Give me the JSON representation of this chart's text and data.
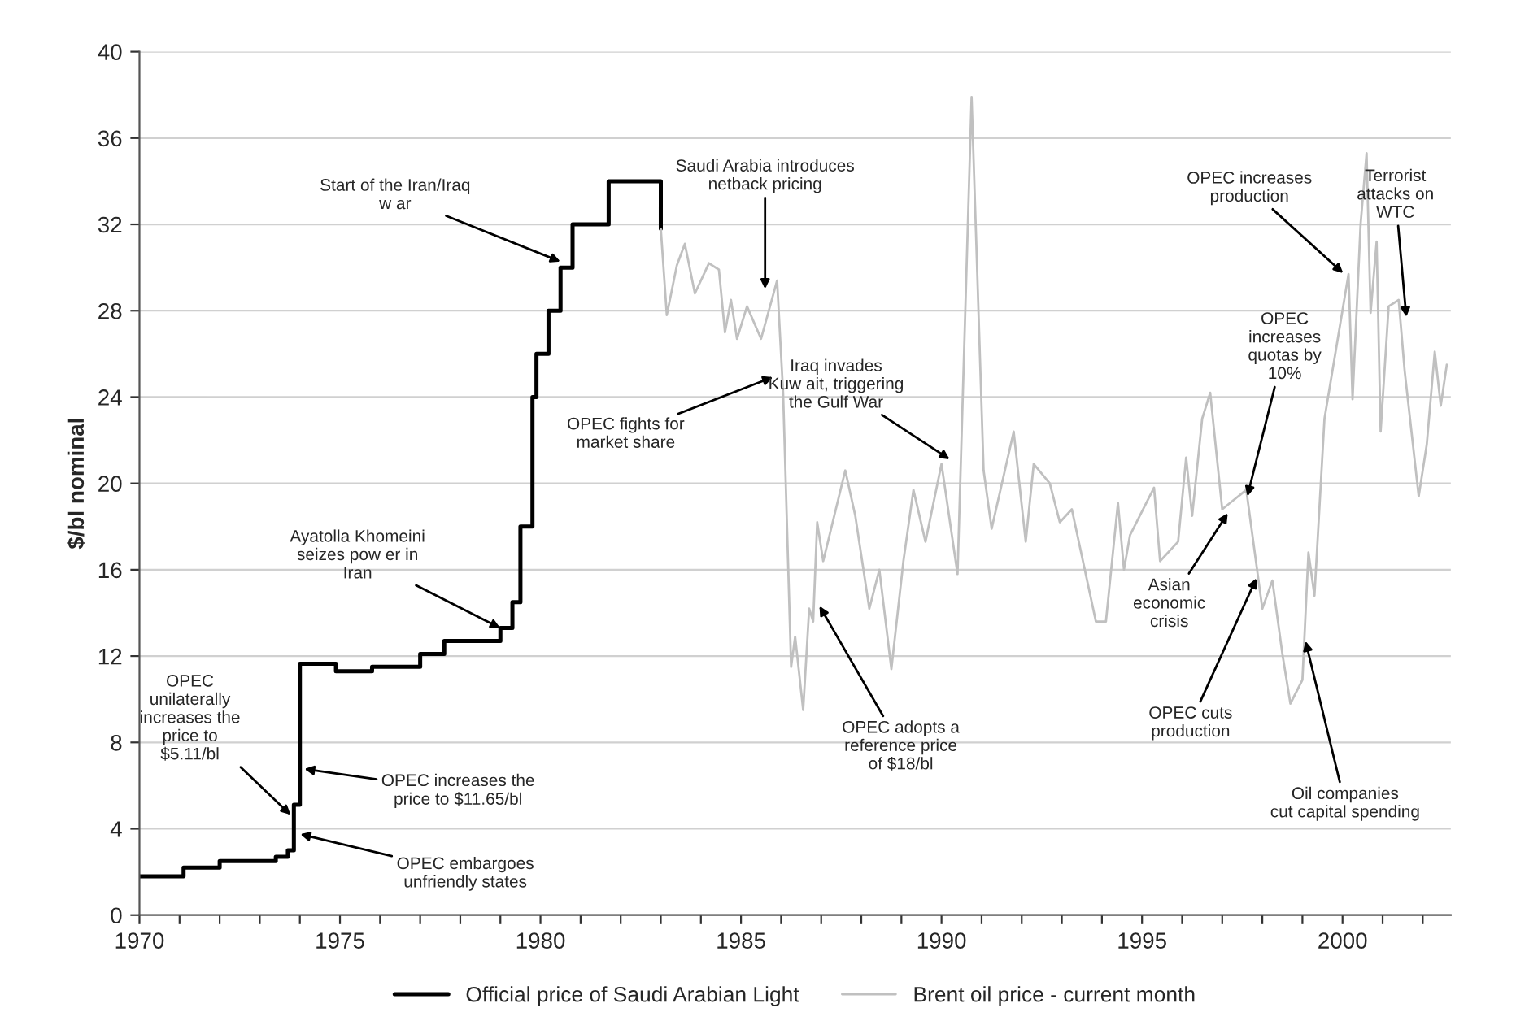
{
  "chart_data": {
    "type": "line",
    "ylabel": "$/bl nominal",
    "xlim": [
      1970,
      2002.7
    ],
    "ylim": [
      0,
      40
    ],
    "xticks": [
      1970,
      {
        "value": 1971,
        "label": null
      },
      {
        "value": 1972,
        "label": null
      },
      {
        "value": 1973,
        "label": null
      },
      {
        "value": 1974,
        "label": null
      },
      1975,
      {
        "value": 1976,
        "label": null
      },
      {
        "value": 1977,
        "label": null
      },
      {
        "value": 1978,
        "label": null
      },
      {
        "value": 1979,
        "label": null
      },
      1980,
      {
        "value": 1981,
        "label": null
      },
      {
        "value": 1982,
        "label": null
      },
      {
        "value": 1983,
        "label": null
      },
      {
        "value": 1984,
        "label": null
      },
      1985,
      {
        "value": 1986,
        "label": null
      },
      {
        "value": 1987,
        "label": null
      },
      {
        "value": 1988,
        "label": null
      },
      {
        "value": 1989,
        "label": null
      },
      1990,
      {
        "value": 1991,
        "label": null
      },
      {
        "value": 1992,
        "label": null
      },
      {
        "value": 1993,
        "label": null
      },
      {
        "value": 1994,
        "label": null
      },
      1995,
      {
        "value": 1996,
        "label": null
      },
      {
        "value": 1997,
        "label": null
      },
      {
        "value": 1998,
        "label": null
      },
      {
        "value": 1999,
        "label": null
      },
      2000,
      {
        "value": 2001,
        "label": null
      },
      {
        "value": 2002,
        "label": null
      }
    ],
    "yticks": [
      0,
      4,
      8,
      12,
      16,
      20,
      24,
      28,
      32,
      36,
      40
    ],
    "grid": "y",
    "legend": "bottom",
    "series": [
      {
        "name": "Official price of Saudi Arabian Light",
        "type": "step",
        "color": "#000000",
        "x": [
          1970,
          1971.1,
          1972,
          1973.4,
          1973.7,
          1973.85,
          1974.0,
          1974.9,
          1975.8,
          1977.0,
          1977.6,
          1979.0,
          1979.3,
          1979.5,
          1979.8,
          1979.9,
          1980.2,
          1980.5,
          1980.8,
          1981.7,
          1982.9,
          1983.0
        ],
        "values": [
          1.8,
          2.2,
          2.5,
          2.7,
          3.0,
          5.11,
          11.65,
          11.3,
          11.5,
          12.1,
          12.7,
          13.3,
          14.5,
          18,
          24,
          26,
          28,
          30,
          32,
          34,
          34,
          31.8
        ]
      },
      {
        "name": "Brent oil price - current month",
        "color": "#c0c0c0",
        "x": [
          1983.0,
          1983.15,
          1983.4,
          1983.6,
          1983.85,
          1984.2,
          1984.45,
          1984.6,
          1984.75,
          1984.9,
          1985.15,
          1985.5,
          1985.9,
          1986.05,
          1986.25,
          1986.35,
          1986.55,
          1986.7,
          1986.8,
          1986.9,
          1987.05,
          1987.6,
          1987.85,
          1988.2,
          1988.45,
          1988.75,
          1989.05,
          1989.3,
          1989.6,
          1990.0,
          1990.4,
          1990.75,
          1991.05,
          1991.25,
          1991.8,
          1992.1,
          1992.3,
          1992.7,
          1992.95,
          1993.25,
          1993.85,
          1994.1,
          1994.4,
          1994.55,
          1994.7,
          1995.3,
          1995.45,
          1995.9,
          1996.1,
          1996.25,
          1996.5,
          1996.7,
          1997.0,
          1997.6,
          1998.0,
          1998.25,
          1998.5,
          1998.7,
          1999.0,
          1999.15,
          1999.3,
          1999.55,
          2000.15,
          2000.25,
          2000.45,
          2000.6,
          2000.7,
          2000.85,
          2000.95,
          2001.15,
          2001.4,
          2001.55,
          2001.9,
          2002.1,
          2002.3,
          2002.45,
          2002.6
        ],
        "values": [
          31.8,
          27.8,
          30.1,
          31.1,
          28.8,
          30.2,
          29.9,
          27.0,
          28.5,
          26.7,
          28.2,
          26.7,
          29.4,
          24.2,
          11.5,
          12.9,
          9.5,
          14.2,
          13.6,
          18.2,
          16.4,
          20.6,
          18.5,
          14.2,
          16.0,
          11.4,
          16.4,
          19.7,
          17.3,
          20.9,
          15.8,
          37.9,
          20.6,
          17.9,
          22.4,
          17.3,
          20.9,
          20.0,
          18.2,
          18.8,
          13.6,
          13.6,
          19.1,
          16.0,
          17.6,
          19.8,
          16.4,
          17.3,
          21.2,
          18.5,
          23.0,
          24.2,
          18.8,
          19.7,
          14.2,
          15.5,
          12.1,
          9.8,
          10.9,
          16.8,
          14.8,
          23.0,
          29.7,
          23.9,
          32.0,
          35.3,
          27.9,
          31.2,
          22.4,
          28.2,
          28.5,
          25.2,
          19.4,
          21.8,
          26.1,
          23.6,
          25.5
        ]
      }
    ],
    "annotations": [
      {
        "text": "OPEC\nunilaterally\nincreases the\nprice to\n$5.11/bl",
        "x": 1973.85,
        "y": 4.5
      },
      {
        "text": "OPEC increases the\nprice to $11.65/bl",
        "x": 1974.0,
        "y": 6.8
      },
      {
        "text": "OPEC embargoes\nunfriendly states",
        "x": 1973.9,
        "y": 3.8
      },
      {
        "text": "Ayatolla Khomeini\nseizes pow er in\nIran",
        "x": 1979.1,
        "y": 13.2
      },
      {
        "text": "Start of the Iran/Iraq\nw ar",
        "x": 1980.6,
        "y": 30.2
      },
      {
        "text": "Saudi Arabia introduces\nnetback pricing",
        "x": 1985.6,
        "y": 28.8
      },
      {
        "text": "OPEC fights for\nmarket share",
        "x": 1985.9,
        "y": 25.0
      },
      {
        "text": "Iraq invades\nKuw ait, triggering\nthe Gulf War",
        "x": 1990.3,
        "y": 21.0
      },
      {
        "text": "OPEC adopts a\nreference price\nof $18/bl",
        "x": 1986.9,
        "y": 14.5
      },
      {
        "text": "OPEC\nincreases\nquotas by\n10%",
        "x": 1997.6,
        "y": 19.2
      },
      {
        "text": "Asian\neconomic\ncrisis",
        "x": 1997.2,
        "y": 18.8
      },
      {
        "text": "OPEC cuts\nproduction",
        "x": 1997.9,
        "y": 15.8
      },
      {
        "text": "Oil companies\ncut capital spending",
        "x": 1999.05,
        "y": 12.9
      },
      {
        "text": "OPEC increases\nproduction",
        "x": 2000.1,
        "y": 29.6
      },
      {
        "text": "Terrorist\nattacks on\nWTC",
        "x": 2001.6,
        "y": 27.5
      }
    ]
  }
}
